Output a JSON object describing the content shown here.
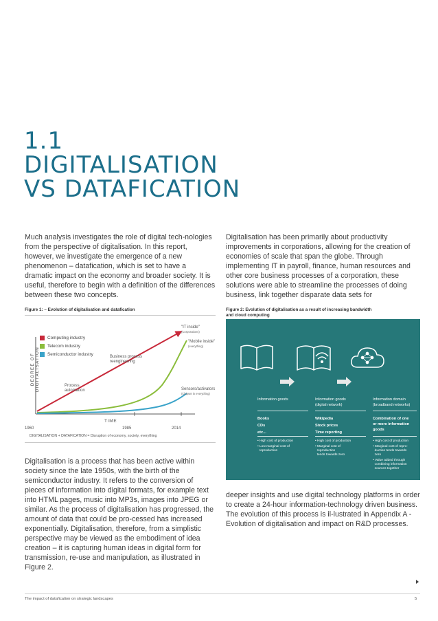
{
  "heading": {
    "number": "1.1",
    "line1": "DIGITALISATION",
    "line2": "VS DATAFICATION"
  },
  "paragraphs": {
    "intro_left": "Much analysis investigates the role of digital tech-nologies from the perspective of digitalisation. In this report, however, we investigate the emergence of a new phenomenon – datafication, which is set to have a dramatic impact on the economy and broader society. It is useful, therefore to begin with a definition of the differences between these two concepts.",
    "intro_right": "Digitalisation has been primarily about productivity improvements in corporations, allowing for the creation of economies of scale that span the globe. Through implementing IT in payroll, finance, human resources and other core business processes of a corporation, these solutions were able to streamline the processes of doing business, link together disparate data sets for",
    "body_left": "Digitalisation is a process that has been active within society since the late 1950s, with the birth of the semiconductor industry. It refers to the conversion of pieces of information into digital formats, for example text into HTML pages, music into MP3s, images into JPEG or similar. As the process of digitalisation has progressed, the amount of data that could be pro-cessed has increased exponentially. Digitalisation, therefore, from a simplistic perspective may be viewed as the embodiment of idea creation – it is capturing human ideas in digital form for transmission, re-use and manipulation, as illustrated in Figure 2.",
    "body_right": "deeper insights and use digital technology platforms in order to create a 24-hour information-technology driven business. The evolution of this process is il-lustrated in Appendix A - Evolution of digitalisation and impact on R&D processes."
  },
  "figure1": {
    "caption": "Figure 1: – Evolution of digitalisation and datafication",
    "legend": [
      "Computing industry",
      "Telecom industry",
      "Semiconductor industry"
    ],
    "colors": {
      "computing": "#c8293a",
      "telecom": "#8bbd3c",
      "semiconductor": "#3aa3c9"
    },
    "y_axis": "DEGREE OF DIGITALISATION",
    "x_axis": "TIME",
    "ticks": [
      "1960",
      "1985",
      "2014"
    ],
    "annotations": {
      "process_automation": "Process automation",
      "business_process": "Business process reengineering",
      "it_inside": "\"IT inside\"",
      "it_inside_sub": "(Corporations)",
      "mobile_inside": "\"Mobile inside\"",
      "mobile_inside_sub": "(everything)",
      "sensors": "Sensors/activators",
      "sensors_sub": "(Chipset in everything)"
    },
    "equation": "DIGITALISATION + DATAFICATION = Disruption of economy, society, everything"
  },
  "figure2": {
    "caption_line1": "Figure 2: Evolution of digitalisation as a result of increasing bandwidth",
    "caption_line2": "and cloud computing",
    "columns": [
      {
        "title": "Information goods",
        "items": [
          "Books",
          "CDs",
          "etc..."
        ],
        "bullets": [
          "• High cost of production",
          "• Low marginal cost of",
          "  reproduction"
        ]
      },
      {
        "title": "Information goods",
        "title2": "(digital network)",
        "items": [
          "Wikipedia",
          "Stock prices",
          "Time reporting"
        ],
        "bullets": [
          "• High cost of production",
          "• Marginal cost of",
          "  reproduction",
          "  tends towards zero"
        ]
      },
      {
        "title": "Information domain",
        "title2": "(broadband networks)",
        "items": [
          "Combination of one",
          "or more information",
          "goods"
        ],
        "bullets": [
          "• High cost of production",
          "• Marginal cost of repro-",
          "  duction tends towards",
          "  zero",
          "• Value added through",
          "  combining information",
          "  sources together"
        ]
      }
    ],
    "colors": {
      "panel": "#267879",
      "arrow": "#e8e8e8"
    }
  },
  "footer": {
    "left": "The impact of datafication on strategic landscapes",
    "page": "5"
  }
}
